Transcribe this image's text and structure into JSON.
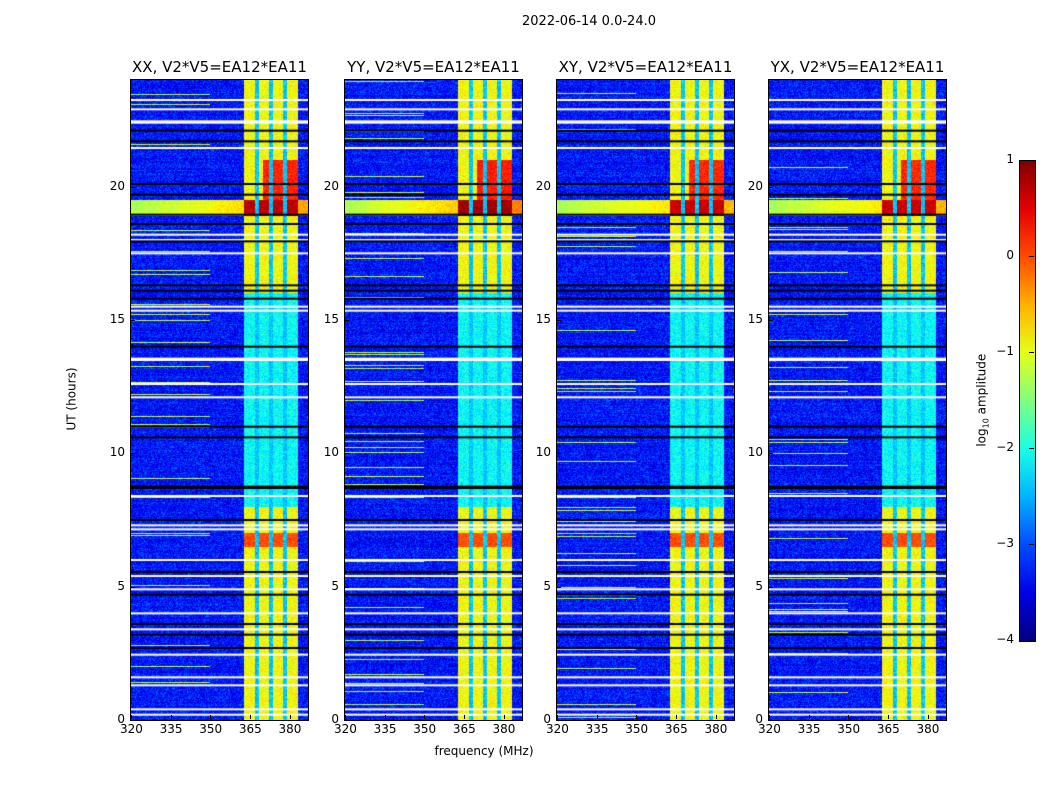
{
  "chart_data": {
    "type": "heatmap",
    "title": "2022-06-14 0.0-24.0",
    "xlabel": "frequency (MHz)",
    "ylabel": "UT (hours)",
    "xlim": [
      320,
      387
    ],
    "ylim": [
      0,
      24
    ],
    "xticks": [
      320,
      335,
      350,
      365,
      380
    ],
    "yticks": [
      0,
      5,
      10,
      15,
      20
    ],
    "colorbar": {
      "label_main": "log",
      "label_sub": "10",
      "label_rest": " amplitude",
      "range": [
        -4,
        1
      ],
      "ticks": [
        1,
        0,
        -1,
        -2,
        -3,
        -4
      ],
      "colormap": "jet"
    },
    "panels": [
      {
        "title": "XX, V2*V5=EA12*EA11",
        "event_strength": 1.0
      },
      {
        "title": "YY, V2*V5=EA12*EA11",
        "event_strength": 1.2
      },
      {
        "title": "XY, V2*V5=EA12*EA11",
        "event_strength": 0.9
      },
      {
        "title": "YX, V2*V5=EA12*EA11",
        "event_strength": 0.9
      }
    ],
    "background_log_amp": -3.3,
    "band": {
      "start_mhz": 362.7,
      "end_mhz": 383.4,
      "gaps_mhz": [
        367.7,
        373.0,
        378.4
      ],
      "active_level": -0.9,
      "quiet_level": -2.1,
      "quiet_hours": [
        8,
        16
      ]
    },
    "events": [
      {
        "t0": 18.9,
        "t1": 19.5,
        "outside_level": -1.3,
        "band_level": 0.7
      },
      {
        "t0": 19.5,
        "t1": 21.0,
        "band_level": 0.2,
        "subbands_only": true
      },
      {
        "t0": 6.5,
        "t1": 7.0,
        "band_level": 0.0
      }
    ],
    "flagged_white_hours": [
      23.25,
      22.9,
      22.45,
      22.4,
      21.45,
      18.2,
      18.0,
      17.5,
      15.5,
      15.35,
      13.55,
      13.5,
      12.6,
      12.1,
      8.4,
      7.3,
      7.15,
      6.0,
      5.4,
      4.9,
      4.0,
      3.4,
      2.45,
      1.6,
      1.3,
      0.4,
      0.2
    ],
    "flagged_black_hours": [
      22.1,
      21.7,
      20.1,
      19.7,
      18.95,
      18.6,
      17.95,
      16.3,
      16.1,
      15.8,
      14.0,
      11.0,
      10.6,
      8.75,
      8.7,
      7.5,
      5.55,
      4.7,
      3.6,
      3.2,
      2.7
    ]
  }
}
